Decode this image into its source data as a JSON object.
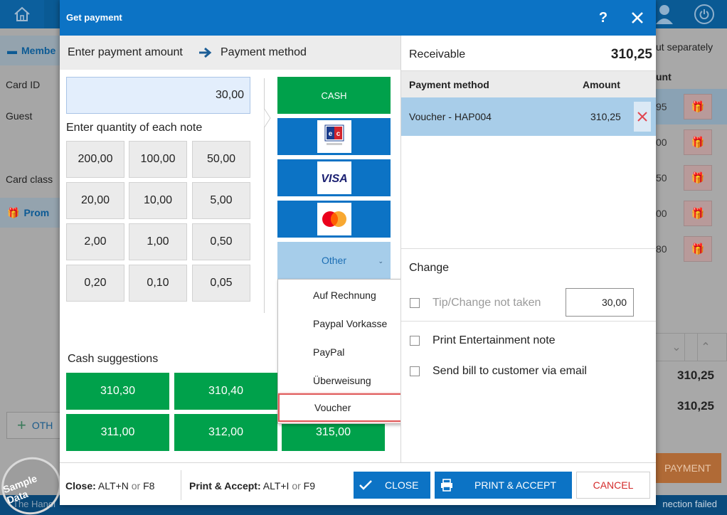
{
  "background": {
    "left_section_member": "Membe",
    "labels": [
      "Card ID",
      "Guest",
      "Card class"
    ],
    "left_section_promo": "Prom",
    "other_button": "OTH",
    "footer_left": "The Hanoi",
    "pay_separately": "ut separately",
    "amount_header": "unt",
    "row_values": [
      "95",
      "00",
      "50",
      "00",
      "80"
    ],
    "totals": [
      "310,25",
      "310,25"
    ],
    "payment_button": "PAYMENT",
    "footer_right": "nection failed",
    "watermark": "Sample Data"
  },
  "dialog": {
    "title": "Get payment",
    "help": "?",
    "left": {
      "step1": "Enter payment amount",
      "step2": "Payment method",
      "amount_value": "30,00",
      "qty_label": "Enter quantity of each note",
      "notes": [
        "200,00",
        "100,00",
        "50,00",
        "20,00",
        "10,00",
        "5,00",
        "2,00",
        "1,00",
        "0,50",
        "0,20",
        "0,10",
        "0,05"
      ],
      "methods": {
        "cash": "CASH",
        "ec_icon": "ec-card-icon",
        "visa_icon": "visa-card-icon",
        "mastercard_icon": "mastercard-icon",
        "other": "Other"
      },
      "cash_suggestions_label": "Cash suggestions",
      "cash_suggestions": [
        "310,30",
        "310,40",
        "311,00",
        "312,00",
        "315,00"
      ]
    },
    "dropdown": {
      "items": [
        "Auf Rechnung",
        "Paypal Vorkasse",
        "PayPal",
        "Überweisung",
        "Voucher"
      ],
      "highlighted": "Voucher"
    },
    "right": {
      "receivable_label": "Receivable",
      "receivable_value": "310,25",
      "table_header": {
        "method": "Payment method",
        "amount": "Amount"
      },
      "rows": [
        {
          "method": "Voucher - HAP004",
          "amount": "310,25"
        }
      ],
      "change_label": "Change",
      "tip_label": "Tip/Change not taken",
      "tip_value": "30,00",
      "print_entertainment": "Print Entertainment note",
      "send_bill": "Send bill to customer via email"
    },
    "footer": {
      "close_shortcut": {
        "label": "Close:",
        "keys1": "ALT+N",
        "or": "or",
        "keys2": "F8"
      },
      "print_shortcut": {
        "label": "Print & Accept:",
        "keys1": "ALT+I",
        "or": "or",
        "keys2": "F9"
      },
      "close_button": "CLOSE",
      "print_accept_button": "PRINT & ACCEPT",
      "cancel_button": "CANCEL"
    }
  },
  "colors": {
    "header_blue": "#0c73c5",
    "cash_green": "#00a14b",
    "selected_row": "#a8cde9",
    "highlight_red": "#e05a5a",
    "cancel_red": "#d42b2b"
  }
}
